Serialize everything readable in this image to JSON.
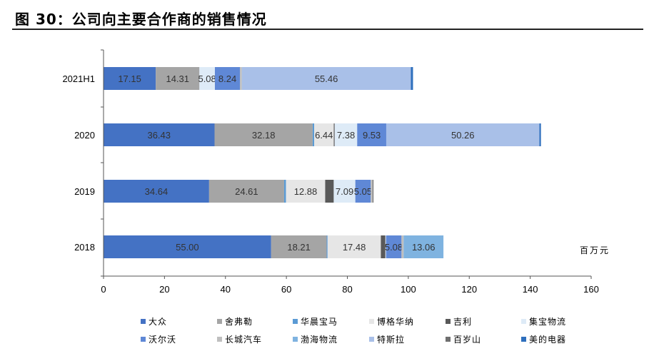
{
  "figure": {
    "title": "图 30：公司向主要合作商的销售情况",
    "unit": "百万元"
  },
  "colors": {
    "大众": "#4472c4",
    "舍弗勒": "#a5a5a5",
    "华晨宝马": "#5b9bd5",
    "博格华纳": "#e6e6e6",
    "吉利": "#595959",
    "集宝物流": "#deebf7",
    "沃尔沃": "#5f88d6",
    "长城汽车": "#bfbfbf",
    "渤海物流": "#7fb3e0",
    "特斯拉": "#a9c0e8",
    "百岁山": "#6f6f6f",
    "美的电器": "#2e6fbd"
  },
  "chart_data": {
    "type": "bar",
    "orientation": "horizontal",
    "stacked": true,
    "categories": [
      "2021H1",
      "2020",
      "2019",
      "2018"
    ],
    "xlim": [
      0,
      160
    ],
    "xticks": [
      0,
      20,
      40,
      60,
      80,
      100,
      120,
      140,
      160
    ],
    "grid": false,
    "legend_position": "bottom",
    "series": [
      {
        "name": "大众",
        "values": [
          17.15,
          36.43,
          34.64,
          55.0
        ],
        "labels": [
          "17.15",
          "36.43",
          "34.64",
          "55.00"
        ]
      },
      {
        "name": "舍弗勒",
        "values": [
          14.31,
          32.18,
          24.61,
          18.21
        ],
        "labels": [
          "14.31",
          "32.18",
          "24.61",
          "18.21"
        ]
      },
      {
        "name": "华晨宝马",
        "values": [
          0,
          0.5,
          0.6,
          0.3
        ],
        "labels": [
          "",
          "",
          "",
          ""
        ]
      },
      {
        "name": "博格华纳",
        "values": [
          0,
          6.44,
          12.88,
          17.48
        ],
        "labels": [
          "",
          "6.44",
          "12.88",
          "17.48"
        ]
      },
      {
        "name": "吉利",
        "values": [
          0,
          0.3,
          2.8,
          1.5
        ],
        "labels": [
          "",
          "",
          "",
          ""
        ]
      },
      {
        "name": "集宝物流",
        "values": [
          5.08,
          7.38,
          7.09,
          0.2
        ],
        "labels": [
          "5.08",
          "7.38",
          "7.09",
          ""
        ]
      },
      {
        "name": "沃尔沃",
        "values": [
          8.24,
          9.53,
          5.05,
          5.08
        ],
        "labels": [
          "8.24",
          "9.53",
          "5.05",
          "5.08"
        ]
      },
      {
        "name": "长城汽车",
        "values": [
          0.6,
          0,
          0.6,
          0.7
        ],
        "labels": [
          "",
          "",
          "",
          ""
        ]
      },
      {
        "name": "渤海物流",
        "values": [
          0,
          0,
          0,
          13.06
        ],
        "labels": [
          "",
          "",
          "",
          "13.06"
        ]
      },
      {
        "name": "特斯拉",
        "values": [
          55.46,
          50.26,
          0,
          0
        ],
        "labels": [
          "55.46",
          "50.26",
          "",
          ""
        ]
      },
      {
        "name": "百岁山",
        "values": [
          0,
          0,
          0.3,
          0
        ],
        "labels": [
          "",
          "",
          "",
          ""
        ]
      },
      {
        "name": "美的电器",
        "values": [
          0.7,
          0.5,
          0,
          0
        ],
        "labels": [
          "",
          "",
          "",
          ""
        ]
      }
    ]
  }
}
